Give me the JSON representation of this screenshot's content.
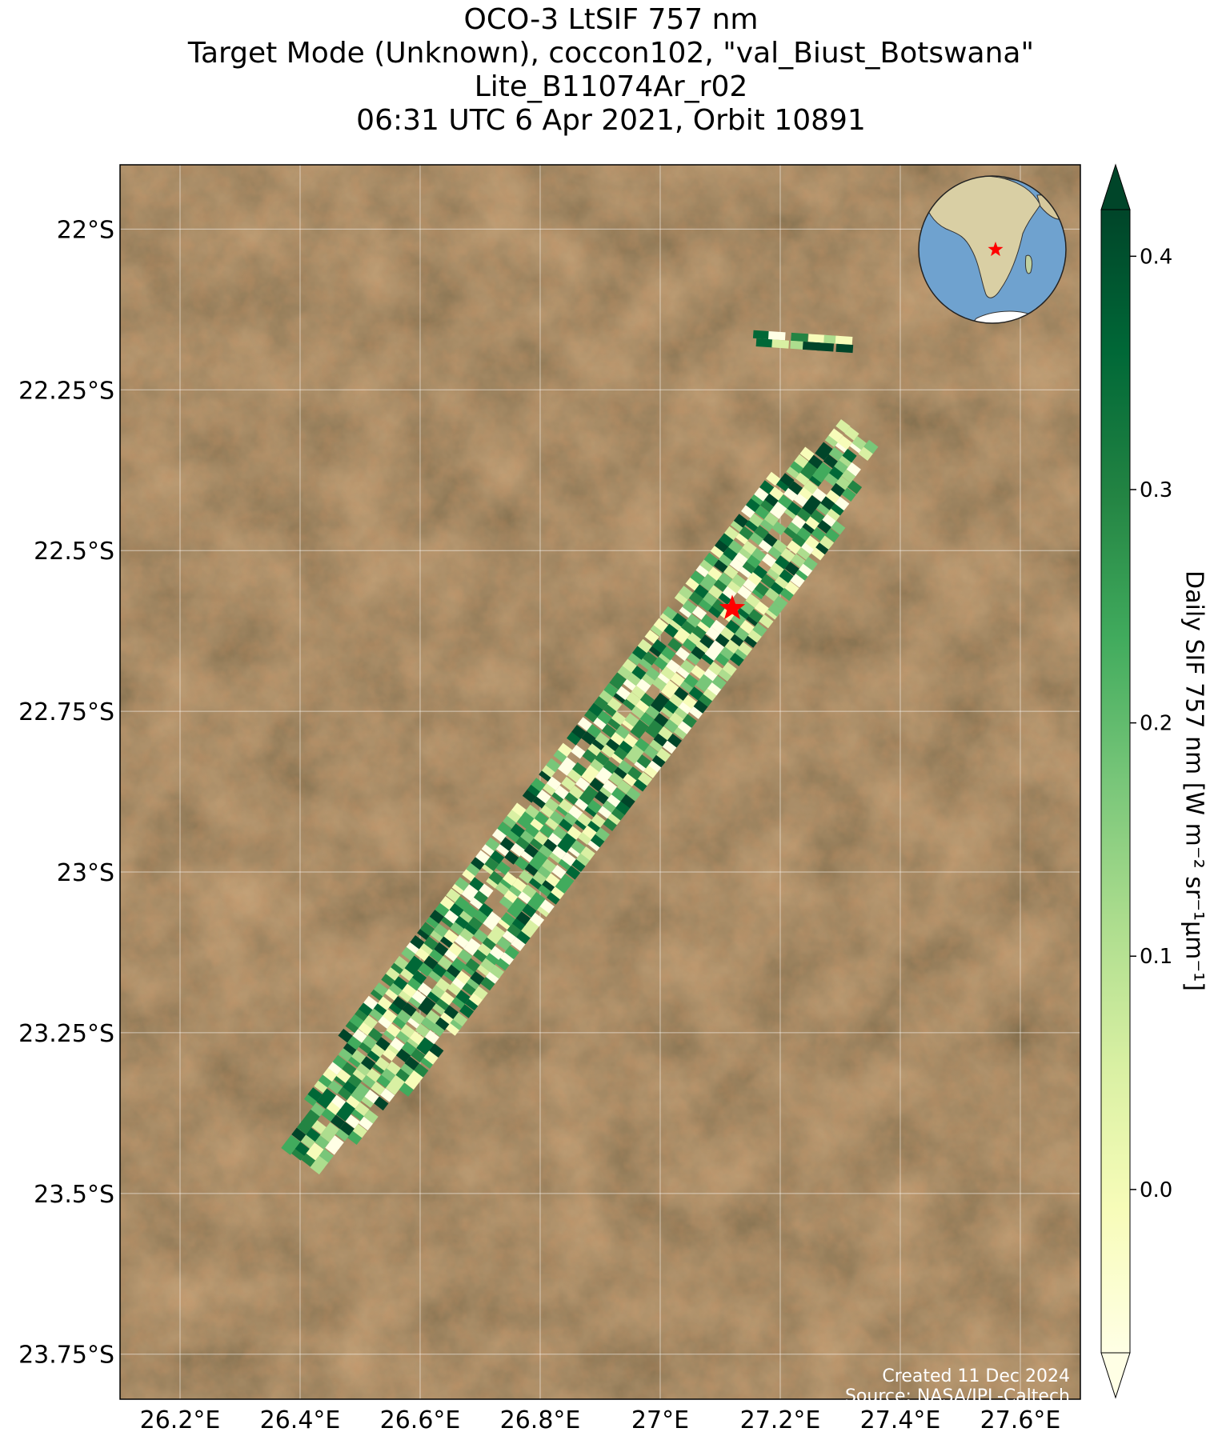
{
  "title": {
    "line1": "OCO-3 LtSIF 757 nm",
    "line2": "Target Mode (Unknown), coccon102, \"val_Biust_Botswana\"",
    "line3": "Lite_B11074Ar_r02",
    "line4": "06:31 UTC 6 Apr 2021, Orbit 10891"
  },
  "credit": {
    "created": "Created 11 Dec 2024",
    "source": "Source: NASA/JPL-Caltech"
  },
  "axes": {
    "lon_ticks": [
      26.2,
      26.4,
      26.6,
      26.8,
      27.0,
      27.2,
      27.4,
      27.6
    ],
    "lon_labels": [
      "26.2°E",
      "26.4°E",
      "26.6°E",
      "26.8°E",
      "27°E",
      "27.2°E",
      "27.4°E",
      "27.6°E"
    ],
    "lat_ticks": [
      -22.0,
      -22.25,
      -22.5,
      -22.75,
      -23.0,
      -23.25,
      -23.5,
      -23.75
    ],
    "lat_labels": [
      "22°S",
      "22.25°S",
      "22.5°S",
      "22.75°S",
      "23°S",
      "23.25°S",
      "23.5°S",
      "23.75°S"
    ],
    "lon_range": [
      26.1,
      27.7
    ],
    "lat_range": [
      -23.82,
      -21.9
    ],
    "grid": true
  },
  "colorbar": {
    "label": "Daily SIF 757 nm [W m⁻² sr⁻¹μm⁻¹]",
    "ticks": [
      0.0,
      0.1,
      0.2,
      0.3,
      0.4
    ],
    "tick_labels": [
      "0.0",
      "0.1",
      "0.2",
      "0.3",
      "0.4"
    ],
    "range": [
      -0.07,
      0.42
    ],
    "colormap": "YlGn",
    "extend": "both"
  },
  "target": {
    "lon": 27.12,
    "lat": -22.59,
    "marker": "red-star"
  },
  "colors": {
    "land": "#7a5a38",
    "star": "#ff0000",
    "cmap": [
      "#ffffe5",
      "#f7fcb9",
      "#d9f0a3",
      "#addd8e",
      "#78c679",
      "#41ab5d",
      "#238443",
      "#006837",
      "#004529"
    ]
  },
  "chart_data": {
    "type": "heatmap",
    "description_fields": "sounding footprints along a NE-SW swath; value = SIF",
    "swath": {
      "start_lon": 26.4,
      "start_lat": -23.45,
      "end_lon": 27.33,
      "end_lat": -22.32,
      "value_range": [
        -0.05,
        0.42
      ]
    },
    "fragment": {
      "start_lon": 27.16,
      "start_lat": -22.17,
      "end_lon": 27.32,
      "end_lat": -22.18
    }
  },
  "inset": {
    "label": "globe-inset-africa"
  }
}
